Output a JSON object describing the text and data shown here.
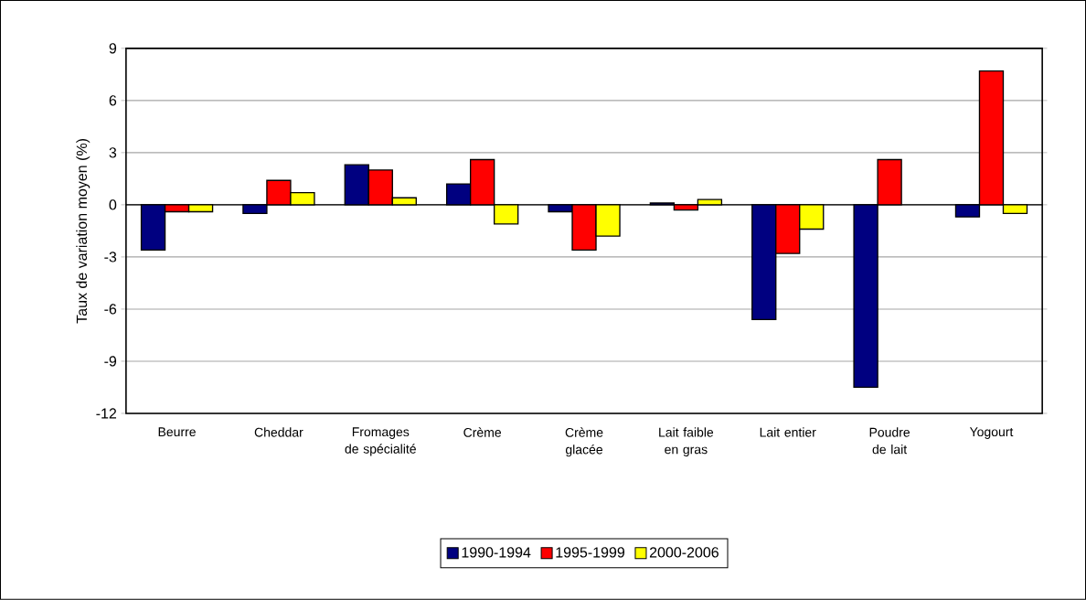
{
  "chart_data": {
    "type": "bar",
    "ylabel": "Taux de variation moyen (%)",
    "categories": [
      "Beurre",
      "Cheddar",
      "Fromages de spécialité",
      "Crème",
      "Crème glacée",
      "Lait faible en gras",
      "Lait entier",
      "Poudre de lait",
      "Yogourt"
    ],
    "series": [
      {
        "name": "1990-1994",
        "color": "#000080",
        "values": [
          -2.6,
          -0.5,
          2.3,
          1.2,
          -0.4,
          0.1,
          -6.6,
          -10.5,
          -0.7
        ]
      },
      {
        "name": "1995-1999",
        "color": "#ff0000",
        "values": [
          -0.4,
          1.4,
          2.0,
          2.6,
          -2.6,
          -0.3,
          -2.8,
          2.6,
          7.7
        ]
      },
      {
        "name": "2000-2006",
        "color": "#ffff00",
        "values": [
          -0.4,
          0.7,
          0.4,
          -1.1,
          -1.8,
          0.3,
          -1.4,
          null,
          -0.5
        ]
      }
    ],
    "ylim": [
      -12,
      9
    ],
    "yticks": [
      -12,
      -9,
      -6,
      -3,
      0,
      3,
      6,
      9
    ],
    "grid": "y",
    "legend": "bottom"
  }
}
